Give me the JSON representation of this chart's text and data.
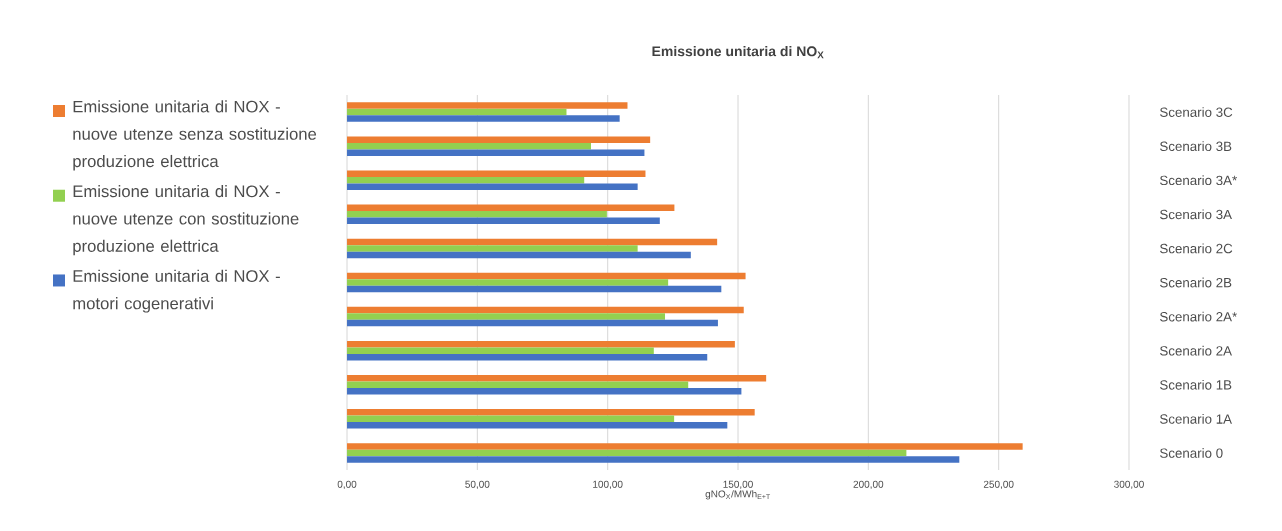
{
  "chart_data": {
    "type": "bar",
    "orientation": "horizontal",
    "title": "Emissione unitaria di NO$_{X}$",
    "xlabel": "gNO$_{X}$/MWh$_{E+T}$",
    "categories": [
      "Scenario 3C",
      "Scenario 3B",
      "Scenario 3A*",
      "Scenario 3A",
      "Scenario 2C",
      "Scenario 2B",
      "Scenario 2A*",
      "Scenario 2A",
      "Scenario 1B",
      "Scenario 1A",
      "Scenario 0"
    ],
    "series": [
      {
        "name": "Emissione unitaria di NOX - nuove utenze senza sostituzione produzione elettrica",
        "color": "#ed7d31",
        "values": [
          107.6,
          116.3,
          114.5,
          125.6,
          142.0,
          152.9,
          152.2,
          148.8,
          160.8,
          156.4,
          259.2
        ]
      },
      {
        "name": "Emissione unitaria di NOX - nuove utenze con sostituzione produzione elettrica",
        "color": "#92d050",
        "values": [
          84.2,
          93.6,
          91.0,
          99.7,
          111.5,
          123.2,
          122.0,
          117.7,
          130.9,
          125.5,
          214.6
        ]
      },
      {
        "name": "Emissione unitaria di NOX - motori cogenerativi",
        "color": "#4472c4",
        "values": [
          104.6,
          114.1,
          111.5,
          120.0,
          131.9,
          143.6,
          142.3,
          138.2,
          151.3,
          145.9,
          235.0
        ]
      }
    ],
    "xlim": [
      0,
      300
    ],
    "xticks": [
      {
        "value": 0,
        "label": "0,00"
      },
      {
        "value": 50,
        "label": "50,00"
      },
      {
        "value": 100,
        "label": "100,00"
      },
      {
        "value": 150,
        "label": "150,00"
      },
      {
        "value": 200,
        "label": "200,00"
      },
      {
        "value": 250,
        "label": "250,00"
      },
      {
        "value": 300,
        "label": "300,00"
      }
    ],
    "grid": "x",
    "legend": "left"
  }
}
